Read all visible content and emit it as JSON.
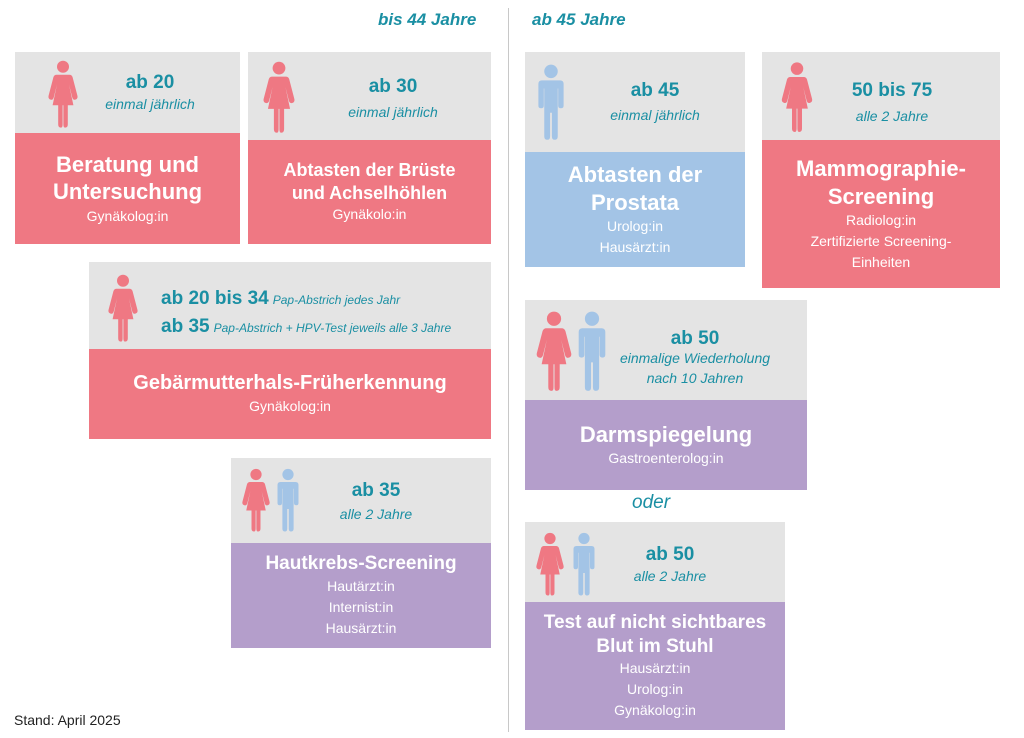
{
  "headers": {
    "left": "bis 44 Jahre",
    "right": "ab 45 Jahre",
    "or": "oder",
    "stand": "Stand: April 2025"
  },
  "colors": {
    "pink": "#ef7883",
    "blue": "#a3c4e6",
    "purple": "#b49ecb",
    "gray": "#e4e4e4",
    "teal": "#1a8fa3"
  },
  "cards": {
    "beratung": {
      "age": "ab 20",
      "freq": "einmal jährlich",
      "title1": "Beratung und",
      "title2": "Untersuchung",
      "sub1": "Gynäkolog:in",
      "icons": [
        "woman-icon"
      ]
    },
    "abtasten_brust": {
      "age": "ab 30",
      "freq": "einmal jährlich",
      "title1": "Abtasten der Brüste",
      "title2": "und Achselhöhlen",
      "sub1": "Gynäkolo:in",
      "icons": [
        "woman-icon"
      ]
    },
    "gebaermutter": {
      "age1": "ab 20 bis 34",
      "freq1": "Pap-Abstrich jedes Jahr",
      "age2": "ab 35",
      "freq2": "Pap-Abstrich + HPV-Test jeweils alle 3 Jahre",
      "title1": "Gebärmutterhals-Früherkennung",
      "sub1": "Gynäkolog:in",
      "icons": [
        "woman-icon"
      ]
    },
    "haut": {
      "age": "ab 35",
      "freq": "alle 2 Jahre",
      "title1": "Hautkrebs-Screening",
      "sub1": "Hautärzt:in",
      "sub2": "Internist:in",
      "sub3": "Hausärzt:in",
      "icons": [
        "woman-icon",
        "man-icon"
      ]
    },
    "prostata": {
      "age": "ab 45",
      "freq": "einmal jährlich",
      "title1": "Abtasten der",
      "title2": "Prostata",
      "sub1": "Urolog:in",
      "sub2": "Hausärzt:in",
      "icons": [
        "man-icon"
      ]
    },
    "mammo": {
      "age": "50 bis 75",
      "freq": "alle 2 Jahre",
      "title1": "Mammographie-",
      "title2": "Screening",
      "sub1": "Radiolog:in",
      "sub2": "Zertifizierte Screening-",
      "sub3": "Einheiten",
      "icons": [
        "woman-icon"
      ]
    },
    "darm": {
      "age": "ab 50",
      "freq1": "einmalige Wiederholung",
      "freq2": "nach 10 Jahren",
      "title1": "Darmspiegelung",
      "sub1": "Gastroenterolog:in",
      "icons": [
        "woman-icon",
        "man-icon"
      ]
    },
    "stuhl": {
      "age": "ab 50",
      "freq": "alle 2 Jahre",
      "title1": "Test auf nicht sichtbares",
      "title2": "Blut im Stuhl",
      "sub1": "Hausärzt:in",
      "sub2": "Urolog:in",
      "sub3": "Gynäkolog:in",
      "icons": [
        "woman-icon",
        "man-icon"
      ]
    }
  }
}
